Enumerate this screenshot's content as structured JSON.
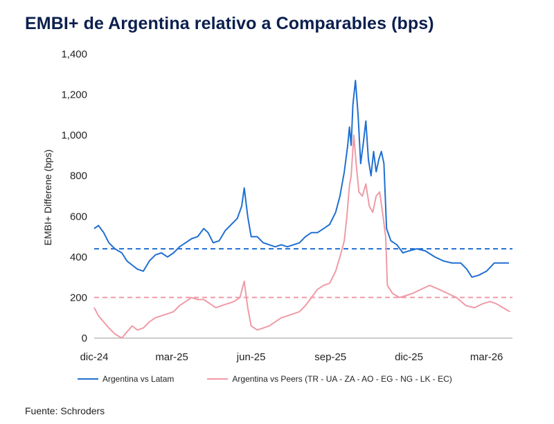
{
  "title": "EMBI+ de Argentina relativo a Comparables (bps)",
  "source": "Fuente: Schroders",
  "colors": {
    "latam": "#1f6fd1",
    "peers": "#ef9aa6",
    "axis": "#222222"
  },
  "chart_data": {
    "type": "line",
    "title": "EMBI+ de Argentina relativo a Comparables (bps)",
    "xlabel": "",
    "ylabel": "EMBI+ Differene (bps)",
    "ylim": [
      0,
      1400
    ],
    "yticks": [
      0,
      200,
      400,
      600,
      800,
      1000,
      1200,
      1400
    ],
    "ytick_labels": [
      "0",
      "200",
      "400",
      "600",
      "800",
      "1,000",
      "1,200",
      "1,400"
    ],
    "xlim": [
      "2024-12-01",
      "2026-03-31"
    ],
    "xticks": [
      {
        "date": "2024-12-01",
        "label": "dic-24"
      },
      {
        "date": "2025-03-01",
        "label": "mar-25"
      },
      {
        "date": "2025-06-01",
        "label": "jun-25"
      },
      {
        "date": "2025-09-01",
        "label": "sep-25"
      },
      {
        "date": "2025-12-01",
        "label": "dic-25"
      },
      {
        "date": "2026-03-01",
        "label": "mar-26"
      }
    ],
    "grid": false,
    "legend_position": "bottom",
    "series": [
      {
        "name": "Argentina vs Latam",
        "style": "solid",
        "points": [
          [
            "2024-12-01",
            540
          ],
          [
            "2024-12-06",
            555
          ],
          [
            "2024-12-12",
            520
          ],
          [
            "2024-12-18",
            470
          ],
          [
            "2024-12-25",
            440
          ],
          [
            "2025-01-02",
            420
          ],
          [
            "2025-01-08",
            380
          ],
          [
            "2025-01-14",
            360
          ],
          [
            "2025-01-20",
            340
          ],
          [
            "2025-01-27",
            330
          ],
          [
            "2025-02-03",
            380
          ],
          [
            "2025-02-10",
            410
          ],
          [
            "2025-02-17",
            420
          ],
          [
            "2025-02-24",
            400
          ],
          [
            "2025-03-03",
            420
          ],
          [
            "2025-03-10",
            450
          ],
          [
            "2025-03-17",
            470
          ],
          [
            "2025-03-24",
            490
          ],
          [
            "2025-03-31",
            500
          ],
          [
            "2025-04-07",
            540
          ],
          [
            "2025-04-12",
            520
          ],
          [
            "2025-04-18",
            470
          ],
          [
            "2025-04-25",
            480
          ],
          [
            "2025-05-02",
            530
          ],
          [
            "2025-05-09",
            560
          ],
          [
            "2025-05-16",
            590
          ],
          [
            "2025-05-21",
            650
          ],
          [
            "2025-05-24",
            740
          ],
          [
            "2025-05-28",
            600
          ],
          [
            "2025-06-01",
            500
          ],
          [
            "2025-06-08",
            500
          ],
          [
            "2025-06-15",
            470
          ],
          [
            "2025-06-22",
            460
          ],
          [
            "2025-06-29",
            450
          ],
          [
            "2025-07-06",
            460
          ],
          [
            "2025-07-13",
            450
          ],
          [
            "2025-07-20",
            460
          ],
          [
            "2025-07-27",
            470
          ],
          [
            "2025-08-03",
            500
          ],
          [
            "2025-08-10",
            520
          ],
          [
            "2025-08-17",
            520
          ],
          [
            "2025-08-24",
            540
          ],
          [
            "2025-08-31",
            560
          ],
          [
            "2025-09-07",
            620
          ],
          [
            "2025-09-12",
            700
          ],
          [
            "2025-09-17",
            820
          ],
          [
            "2025-09-21",
            950
          ],
          [
            "2025-09-23",
            1040
          ],
          [
            "2025-09-25",
            950
          ],
          [
            "2025-09-27",
            1150
          ],
          [
            "2025-09-30",
            1270
          ],
          [
            "2025-10-03",
            1100
          ],
          [
            "2025-10-06",
            860
          ],
          [
            "2025-10-09",
            960
          ],
          [
            "2025-10-12",
            1070
          ],
          [
            "2025-10-15",
            880
          ],
          [
            "2025-10-18",
            800
          ],
          [
            "2025-10-21",
            920
          ],
          [
            "2025-10-24",
            820
          ],
          [
            "2025-10-27",
            880
          ],
          [
            "2025-10-30",
            920
          ],
          [
            "2025-11-02",
            860
          ],
          [
            "2025-11-05",
            540
          ],
          [
            "2025-11-10",
            480
          ],
          [
            "2025-11-17",
            460
          ],
          [
            "2025-11-24",
            420
          ],
          [
            "2025-12-01",
            430
          ],
          [
            "2025-12-10",
            440
          ],
          [
            "2025-12-20",
            430
          ],
          [
            "2025-12-31",
            400
          ],
          [
            "2026-01-10",
            380
          ],
          [
            "2026-01-20",
            370
          ],
          [
            "2026-01-30",
            370
          ],
          [
            "2026-02-06",
            340
          ],
          [
            "2026-02-12",
            300
          ],
          [
            "2026-02-20",
            310
          ],
          [
            "2026-03-01",
            330
          ],
          [
            "2026-03-10",
            370
          ],
          [
            "2026-03-18",
            370
          ],
          [
            "2026-03-27",
            370
          ]
        ],
        "reference": 440
      },
      {
        "name": "Argentina vs Peers (TR - UA - ZA - AO - EG - NG - LK - EC)",
        "style": "solid",
        "points": [
          [
            "2024-12-01",
            150
          ],
          [
            "2024-12-06",
            110
          ],
          [
            "2024-12-12",
            80
          ],
          [
            "2024-12-18",
            50
          ],
          [
            "2024-12-25",
            20
          ],
          [
            "2025-01-02",
            0
          ],
          [
            "2025-01-08",
            30
          ],
          [
            "2025-01-14",
            60
          ],
          [
            "2025-01-20",
            40
          ],
          [
            "2025-01-27",
            50
          ],
          [
            "2025-02-03",
            80
          ],
          [
            "2025-02-10",
            100
          ],
          [
            "2025-02-17",
            110
          ],
          [
            "2025-02-24",
            120
          ],
          [
            "2025-03-03",
            130
          ],
          [
            "2025-03-10",
            160
          ],
          [
            "2025-03-17",
            180
          ],
          [
            "2025-03-24",
            200
          ],
          [
            "2025-03-31",
            190
          ],
          [
            "2025-04-07",
            190
          ],
          [
            "2025-04-14",
            170
          ],
          [
            "2025-04-21",
            150
          ],
          [
            "2025-04-28",
            160
          ],
          [
            "2025-05-05",
            170
          ],
          [
            "2025-05-12",
            180
          ],
          [
            "2025-05-19",
            200
          ],
          [
            "2025-05-24",
            280
          ],
          [
            "2025-05-28",
            150
          ],
          [
            "2025-06-01",
            60
          ],
          [
            "2025-06-08",
            40
          ],
          [
            "2025-06-15",
            50
          ],
          [
            "2025-06-22",
            60
          ],
          [
            "2025-06-29",
            80
          ],
          [
            "2025-07-06",
            100
          ],
          [
            "2025-07-13",
            110
          ],
          [
            "2025-07-20",
            120
          ],
          [
            "2025-07-27",
            130
          ],
          [
            "2025-08-03",
            160
          ],
          [
            "2025-08-10",
            200
          ],
          [
            "2025-08-17",
            240
          ],
          [
            "2025-08-24",
            260
          ],
          [
            "2025-08-31",
            270
          ],
          [
            "2025-09-07",
            330
          ],
          [
            "2025-09-12",
            400
          ],
          [
            "2025-09-17",
            480
          ],
          [
            "2025-09-20",
            600
          ],
          [
            "2025-09-23",
            750
          ],
          [
            "2025-09-25",
            800
          ],
          [
            "2025-09-28",
            1000
          ],
          [
            "2025-10-01",
            850
          ],
          [
            "2025-10-04",
            720
          ],
          [
            "2025-10-08",
            700
          ],
          [
            "2025-10-12",
            760
          ],
          [
            "2025-10-16",
            650
          ],
          [
            "2025-10-20",
            620
          ],
          [
            "2025-10-24",
            700
          ],
          [
            "2025-10-28",
            720
          ],
          [
            "2025-11-01",
            600
          ],
          [
            "2025-11-04",
            500
          ],
          [
            "2025-11-06",
            260
          ],
          [
            "2025-11-12",
            220
          ],
          [
            "2025-11-20",
            200
          ],
          [
            "2025-11-28",
            210
          ],
          [
            "2025-12-05",
            220
          ],
          [
            "2025-12-15",
            240
          ],
          [
            "2025-12-25",
            260
          ],
          [
            "2026-01-05",
            240
          ],
          [
            "2026-01-15",
            220
          ],
          [
            "2026-01-25",
            200
          ],
          [
            "2026-02-05",
            160
          ],
          [
            "2026-02-15",
            150
          ],
          [
            "2026-02-25",
            170
          ],
          [
            "2026-03-05",
            180
          ],
          [
            "2026-03-12",
            170
          ],
          [
            "2026-03-20",
            150
          ],
          [
            "2026-03-28",
            130
          ]
        ],
        "reference": 200
      }
    ]
  }
}
